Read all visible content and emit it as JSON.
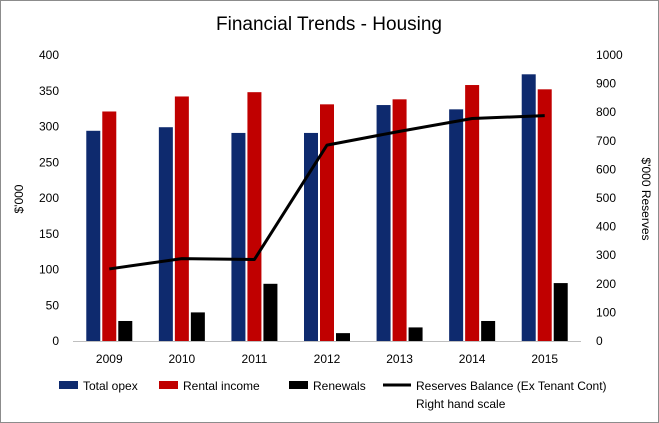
{
  "chart_data": {
    "type": "bar",
    "title": "Financial Trends - Housing",
    "categories": [
      "2009",
      "2010",
      "2011",
      "2012",
      "2013",
      "2014",
      "2015"
    ],
    "ylabel": "$'000",
    "y2label": "$'000 Reserves",
    "ylim": [
      0,
      400
    ],
    "y2lim": [
      0,
      1000
    ],
    "yticks": [
      "0",
      "50",
      "100",
      "150",
      "200",
      "250",
      "300",
      "350",
      "400"
    ],
    "y2ticks": [
      "0",
      "100",
      "200",
      "300",
      "400",
      "500",
      "600",
      "700",
      "800",
      "900",
      "1000"
    ],
    "grid": false,
    "legend_position": "bottom",
    "series": [
      {
        "name": "Total opex",
        "kind": "bar",
        "axis": "left",
        "color": "#0e2a6e",
        "values": [
          294,
          299,
          291,
          291,
          330,
          324,
          373
        ]
      },
      {
        "name": "Rental income",
        "kind": "bar",
        "axis": "left",
        "color": "#c00000",
        "values": [
          321,
          342,
          348,
          331,
          338,
          358,
          352
        ]
      },
      {
        "name": "Renewals",
        "kind": "bar",
        "axis": "left",
        "color": "#000000",
        "values": [
          28,
          40,
          80,
          11,
          19,
          28,
          81
        ]
      },
      {
        "name": "Reserves Balance (Ex Tenant Cont)",
        "name_line2": "Right hand scale",
        "kind": "line",
        "axis": "right",
        "color": "#000000",
        "values": [
          252,
          288,
          285,
          685,
          733,
          778,
          788
        ]
      }
    ]
  }
}
